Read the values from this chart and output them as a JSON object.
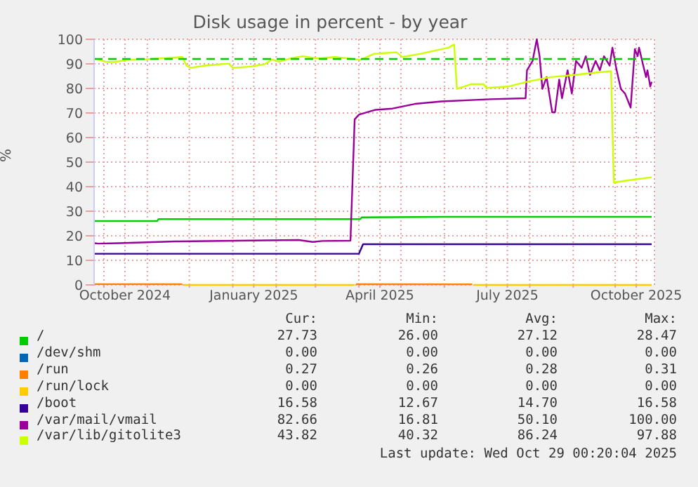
{
  "chart_data": {
    "type": "line",
    "title": "Disk usage in percent - by year",
    "ylabel": "%",
    "xlim": [
      "2024-09-24",
      "2025-10-29"
    ],
    "xticks": [
      {
        "value": "2024-10-01",
        "label": null
      },
      {
        "value": "2024-10-16",
        "label": "October 2024"
      },
      {
        "value": "2024-11-01",
        "label": null
      },
      {
        "value": "2024-12-01",
        "label": null
      },
      {
        "value": "2025-01-01",
        "label": null
      },
      {
        "value": "2025-01-16",
        "label": "January 2025"
      },
      {
        "value": "2025-02-01",
        "label": null
      },
      {
        "value": "2025-03-01",
        "label": null
      },
      {
        "value": "2025-04-01",
        "label": null
      },
      {
        "value": "2025-04-16",
        "label": "April 2025"
      },
      {
        "value": "2025-05-01",
        "label": null
      },
      {
        "value": "2025-06-01",
        "label": null
      },
      {
        "value": "2025-07-01",
        "label": null
      },
      {
        "value": "2025-07-16",
        "label": "July 2025"
      },
      {
        "value": "2025-08-01",
        "label": null
      },
      {
        "value": "2025-09-01",
        "label": null
      },
      {
        "value": "2025-10-01",
        "label": null
      },
      {
        "value": "2025-10-16",
        "label": "October 2025"
      }
    ],
    "ylim": [
      0,
      100
    ],
    "yticks": [
      0,
      10,
      20,
      30,
      40,
      50,
      60,
      70,
      80,
      90,
      100
    ],
    "grid": true,
    "legend": "bottom",
    "marker": "none",
    "line_style": "solid",
    "ref_lines": [
      {
        "axis": "y",
        "value": 92,
        "color": "#00cc00",
        "line_style": "dashed"
      }
    ],
    "series": [
      {
        "name": "/",
        "color": "#00cc00",
        "x": [
          "2024-09-24",
          "2024-11-08",
          "2024-11-09",
          "2025-04-02",
          "2025-04-03",
          "2025-06-01",
          "2025-10-27"
        ],
        "values": [
          26.0,
          26.0,
          26.8,
          26.8,
          27.5,
          27.7,
          27.73
        ]
      },
      {
        "name": "/dev/shm",
        "color": "#0066b3"
      },
      {
        "name": "/run",
        "color": "#ff8000",
        "x": [
          "2024-09-24",
          "2024-11-26",
          "2024-11-27",
          "2025-03-30",
          "2025-06-21"
        ],
        "values": [
          0.31,
          0.28,
          null,
          0.27,
          0.26
        ]
      },
      {
        "name": "/run/lock",
        "color": "#ffcc00",
        "x": [
          "2024-11-27",
          "2025-03-29",
          "2025-03-30",
          "2025-06-22",
          "2025-10-27"
        ],
        "values": [
          0,
          0,
          null,
          0,
          0
        ]
      },
      {
        "name": "/boot",
        "color": "#330099",
        "x": [
          "2024-09-24",
          "2025-04-01",
          "2025-04-04",
          "2025-10-27"
        ],
        "values": [
          12.67,
          12.67,
          16.58,
          16.58
        ]
      },
      {
        "name": "/var/mail/vmail",
        "color": "#990099",
        "x": [
          "2024-09-24",
          "2024-09-27",
          "2024-10-12",
          "2024-11-21",
          "2025-02-17",
          "2025-02-27",
          "2025-03-06",
          "2025-03-26",
          "2025-03-29",
          "2025-04-01",
          "2025-04-13",
          "2025-04-25",
          "2025-05-11",
          "2025-05-30",
          "2025-07-04",
          "2025-07-29",
          "2025-07-30",
          "2025-08-03",
          "2025-08-06",
          "2025-08-08",
          "2025-08-10",
          "2025-08-13",
          "2025-08-17",
          "2025-08-19",
          "2025-08-22",
          "2025-08-24",
          "2025-08-28",
          "2025-08-31",
          "2025-09-03",
          "2025-09-07",
          "2025-09-10",
          "2025-09-13",
          "2025-09-17",
          "2025-09-20",
          "2025-09-23",
          "2025-09-27",
          "2025-09-29",
          "2025-10-02",
          "2025-10-05",
          "2025-10-08",
          "2025-10-12",
          "2025-10-15",
          "2025-10-17",
          "2025-10-18",
          "2025-10-21",
          "2025-10-23",
          "2025-10-24",
          "2025-10-26",
          "2025-10-27"
        ],
        "values": [
          17.0,
          16.81,
          17.0,
          17.7,
          18.3,
          17.5,
          17.9,
          18.0,
          67.4,
          69.3,
          71.3,
          71.8,
          73.7,
          74.7,
          75.6,
          76.0,
          87.4,
          91.2,
          100.0,
          93.1,
          79.8,
          84.6,
          70.3,
          70.3,
          83.6,
          76.0,
          87.4,
          77.9,
          91.2,
          88.4,
          93.1,
          85.5,
          91.2,
          87.4,
          93.1,
          89.3,
          96.6,
          87.4,
          79.8,
          77.9,
          72.2,
          96.0,
          93.1,
          96.6,
          89.3,
          84.6,
          87.4,
          80.8,
          82.66
        ]
      },
      {
        "name": "/var/lib/gitolite3",
        "color": "#ccff00",
        "x": [
          "2024-09-24",
          "2024-10-02",
          "2024-10-08",
          "2024-10-18",
          "2024-10-30",
          "2024-11-26",
          "2024-11-29",
          "2024-12-02",
          "2024-12-12",
          "2024-12-29",
          "2025-01-01",
          "2025-01-14",
          "2025-01-24",
          "2025-01-29",
          "2025-02-03",
          "2025-02-11",
          "2025-02-20",
          "2025-03-02",
          "2025-03-15",
          "2025-04-02",
          "2025-04-12",
          "2025-04-28",
          "2025-05-02",
          "2025-05-15",
          "2025-06-04",
          "2025-06-08",
          "2025-06-10",
          "2025-06-20",
          "2025-06-29",
          "2025-07-01",
          "2025-07-17",
          "2025-07-30",
          "2025-08-16",
          "2025-09-02",
          "2025-09-18",
          "2025-09-28",
          "2025-09-30",
          "2025-10-12",
          "2025-10-27"
        ],
        "values": [
          92.2,
          90.9,
          90.7,
          91.6,
          91.8,
          92.8,
          89.3,
          88.4,
          89.3,
          90.1,
          88.4,
          88.9,
          89.9,
          91.8,
          90.9,
          92.2,
          93.1,
          92.2,
          92.8,
          91.6,
          94.1,
          94.7,
          92.8,
          94.1,
          96.6,
          97.88,
          79.8,
          81.7,
          81.7,
          80.2,
          80.8,
          82.7,
          84.6,
          85.5,
          86.5,
          87.0,
          41.7,
          42.7,
          43.82
        ]
      }
    ],
    "annotations": [
      "Cur:",
      "Min:",
      "Avg:",
      "Max:",
      "27.73",
      "26.00",
      "27.12",
      "28.47",
      "0.00",
      "0.00",
      "0.00",
      "0.00",
      "0.27",
      "0.26",
      "0.28",
      "0.31",
      "0.00",
      "0.00",
      "0.00",
      "0.00",
      "16.58",
      "12.67",
      "14.70",
      "16.58",
      "82.66",
      "16.81",
      "50.10",
      "100.00",
      "43.82",
      "40.32",
      "86.24",
      "97.88",
      "Last update: Wed Oct 29 00:20:04 2025"
    ]
  }
}
